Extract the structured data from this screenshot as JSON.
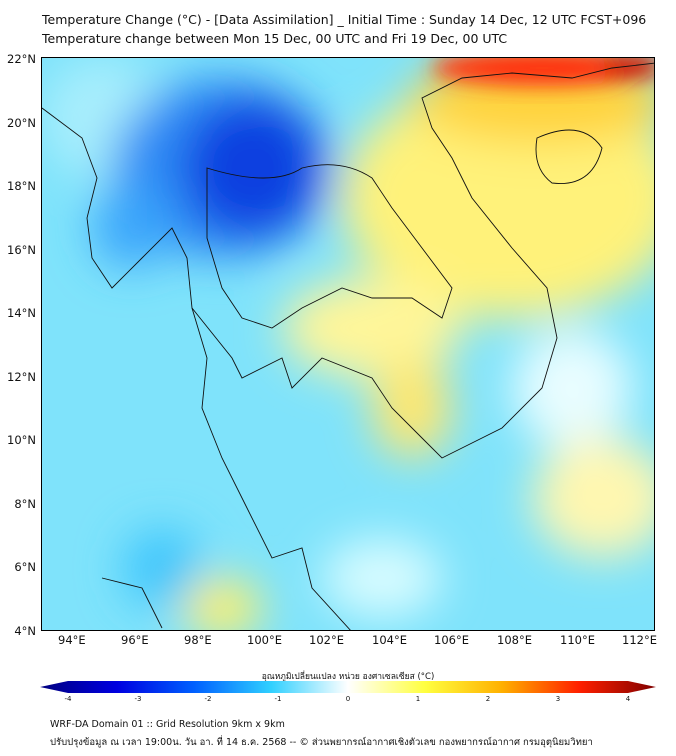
{
  "title": {
    "line1": "Temperature Change (°C) - [Data Assimilation] _ Initial Time : Sunday 14 Dec, 12 UTC FCST+096",
    "line2": "Temperature change between Mon 15 Dec, 00 UTC and Fri 19 Dec, 00 UTC"
  },
  "map": {
    "lat_labels": [
      "22°N",
      "20°N",
      "18°N",
      "16°N",
      "14°N",
      "12°N",
      "10°N",
      "8°N",
      "6°N",
      "4°N"
    ],
    "lon_labels": [
      "94°E",
      "96°E",
      "98°E",
      "100°E",
      "102°E",
      "104°E",
      "106°E",
      "108°E",
      "110°E",
      "112°E"
    ],
    "lon_range": [
      93,
      112.5
    ],
    "lat_range": [
      4,
      22
    ]
  },
  "colorbar": {
    "label": "อุณหภูมิเปลี่ยนแปลง หน่วย องศาเซลเซียส (°C)",
    "ticks": [
      "-4",
      "-3",
      "-2",
      "-1",
      "0",
      "1",
      "2",
      "3",
      "4"
    ],
    "colors": [
      "#00007f",
      "#0000e0",
      "#0060ff",
      "#30d0ff",
      "#ffffff",
      "#ffff40",
      "#ffb000",
      "#ff2000",
      "#7f0000"
    ]
  },
  "footer": {
    "line1": "WRF-DA Domain 01 :: Grid Resolution 9km x 9km",
    "line2": "ปรับปรุงข้อมูล ณ เวลา 19:00น. วัน อา. ที่ 14 ธ.ค. 2568 -- © ส่วนพยากรณ์อากาศเชิงตัวเลข กองพยากรณ์อากาศ กรมอุตุนิยมวิทยา"
  }
}
